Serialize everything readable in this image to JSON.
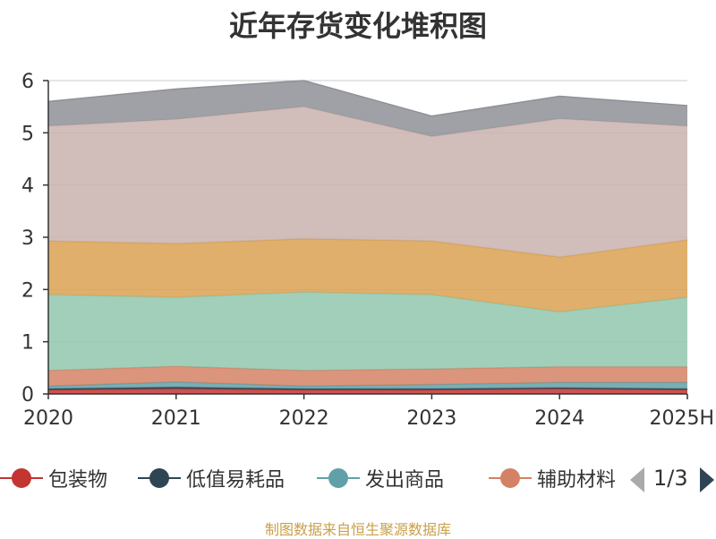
{
  "title": "近年存货变化堆积图",
  "source_note": "制图数据来自恒生聚源数据库",
  "pager": {
    "label": "1/3"
  },
  "chart_data": {
    "type": "area",
    "stacked": true,
    "title": "近年存货变化堆积图",
    "x": [
      "2020",
      "2021",
      "2022",
      "2023",
      "2024",
      "2025H"
    ],
    "ylim": [
      0,
      6
    ],
    "yticks": [
      0,
      1,
      2,
      3,
      4,
      5,
      6
    ],
    "grid": true,
    "series": [
      {
        "name": "包装物",
        "color": "#c23531",
        "values": [
          0.08,
          0.1,
          0.08,
          0.08,
          0.1,
          0.08
        ]
      },
      {
        "name": "低值易耗品",
        "color": "#2f4554",
        "values": [
          0.02,
          0.03,
          0.02,
          0.02,
          0.02,
          0.02
        ]
      },
      {
        "name": "发出商品",
        "color": "#61a0a8",
        "values": [
          0.05,
          0.1,
          0.05,
          0.08,
          0.1,
          0.12
        ]
      },
      {
        "name": "辅助材料",
        "color": "#d48265",
        "values": [
          0.3,
          0.3,
          0.3,
          0.3,
          0.3,
          0.3
        ]
      },
      {
        "name": "",
        "color": "#91c7ae",
        "values": [
          1.45,
          1.32,
          1.5,
          1.42,
          1.05,
          1.33
        ]
      },
      {
        "name": "",
        "color": "#d9a151",
        "values": [
          1.03,
          1.03,
          1.02,
          1.03,
          1.05,
          1.1
        ]
      },
      {
        "name": "",
        "color": "#c9b2ad",
        "values": [
          2.2,
          2.38,
          2.53,
          2.0,
          2.65,
          2.18
        ]
      },
      {
        "name": "",
        "color": "#8e9196",
        "values": [
          0.47,
          0.58,
          0.5,
          0.39,
          0.43,
          0.39
        ]
      }
    ],
    "legend": {
      "position": "bottom",
      "visible_items": [
        "包装物",
        "低值易耗品",
        "发出商品",
        "辅助材料"
      ]
    }
  }
}
